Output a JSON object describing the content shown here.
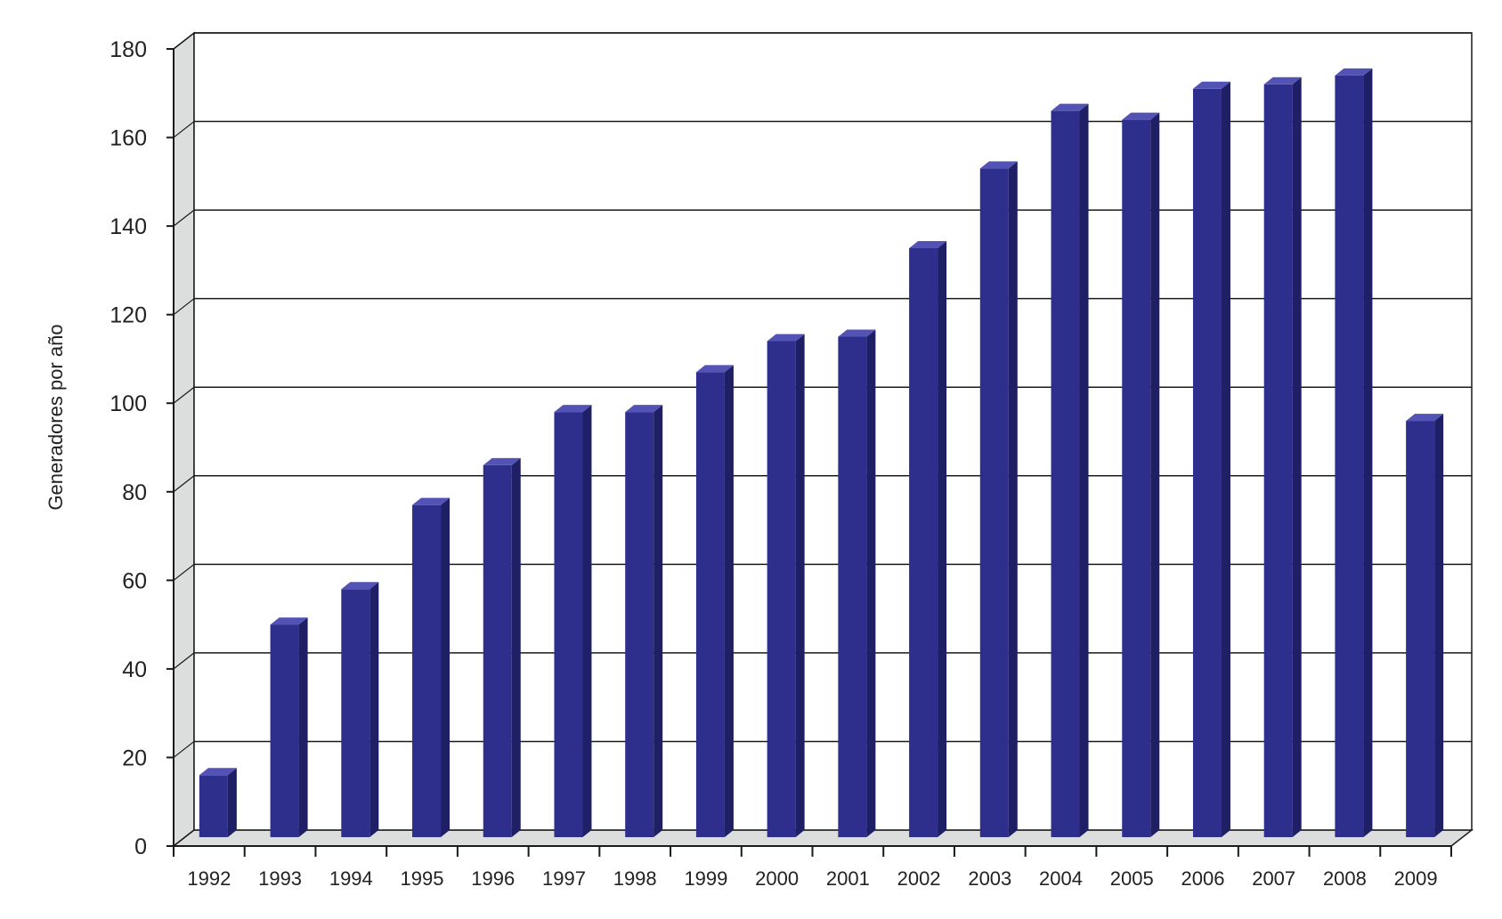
{
  "chart_data": {
    "type": "bar",
    "title": "",
    "xlabel": "",
    "ylabel": "Generadores por año",
    "ylim": [
      0,
      180
    ],
    "y_ticks": [
      0,
      20,
      40,
      60,
      80,
      100,
      120,
      140,
      160,
      180
    ],
    "grid": true,
    "three_d": true,
    "legend": "none",
    "categories": [
      "1992",
      "1993",
      "1994",
      "1995",
      "1996",
      "1997",
      "1998",
      "1999",
      "2000",
      "2001",
      "2002",
      "2003",
      "2004",
      "2005",
      "2006",
      "2007",
      "2008",
      "2009"
    ],
    "series": [
      {
        "values": [
          14,
          48,
          56,
          75,
          84,
          96,
          96,
          105,
          112,
          113,
          133,
          151,
          164,
          162,
          169,
          170,
          172,
          94
        ]
      }
    ]
  },
  "colors": {
    "bar_front": "#2e2e8c",
    "bar_side": "#1f1f66",
    "bar_top": "#5353b6",
    "wall": "#dcdddd",
    "floor": "#dcdddd",
    "grid": "#1a1a1a",
    "text": "#222222"
  }
}
